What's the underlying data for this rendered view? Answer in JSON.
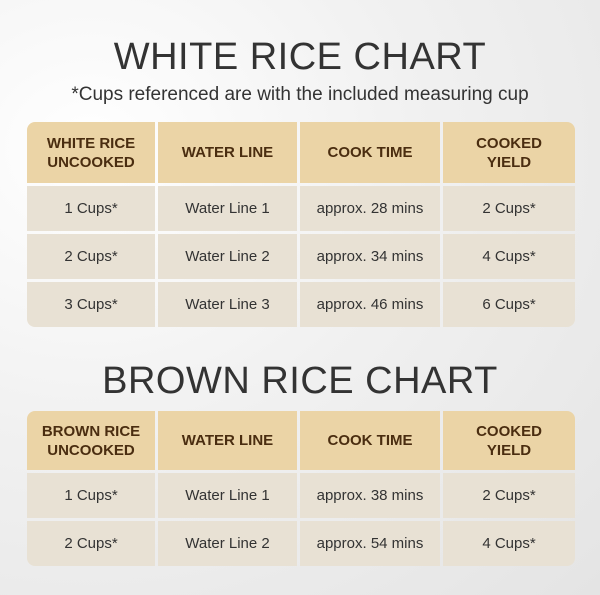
{
  "sections": [
    {
      "title": "WHITE RICE CHART",
      "subtitle": "*Cups referenced are with the included measuring cup",
      "table": {
        "header": [
          [
            "WHITE RICE",
            "UNCOOKED"
          ],
          [
            "WATER LINE"
          ],
          [
            "COOK TIME"
          ],
          [
            "COOKED",
            "YIELD"
          ]
        ],
        "rows": [
          [
            "1 Cups*",
            "Water Line 1",
            "approx. 28 mins",
            "2 Cups*"
          ],
          [
            "2 Cups*",
            "Water Line 2",
            "approx. 34 mins",
            "4 Cups*"
          ],
          [
            "3 Cups*",
            "Water Line 3",
            "approx. 46 mins",
            "6 Cups*"
          ]
        ]
      }
    },
    {
      "title": "BROWN RICE CHART",
      "table": {
        "header": [
          [
            "BROWN RICE",
            "UNCOOKED"
          ],
          [
            "WATER LINE"
          ],
          [
            "COOK TIME"
          ],
          [
            "COOKED",
            "YIELD"
          ]
        ],
        "rows": [
          [
            "1 Cups*",
            "Water Line 1",
            "approx. 38 mins",
            "2 Cups*"
          ],
          [
            "2 Cups*",
            "Water Line 2",
            "approx. 54 mins",
            "4 Cups*"
          ]
        ]
      }
    }
  ]
}
